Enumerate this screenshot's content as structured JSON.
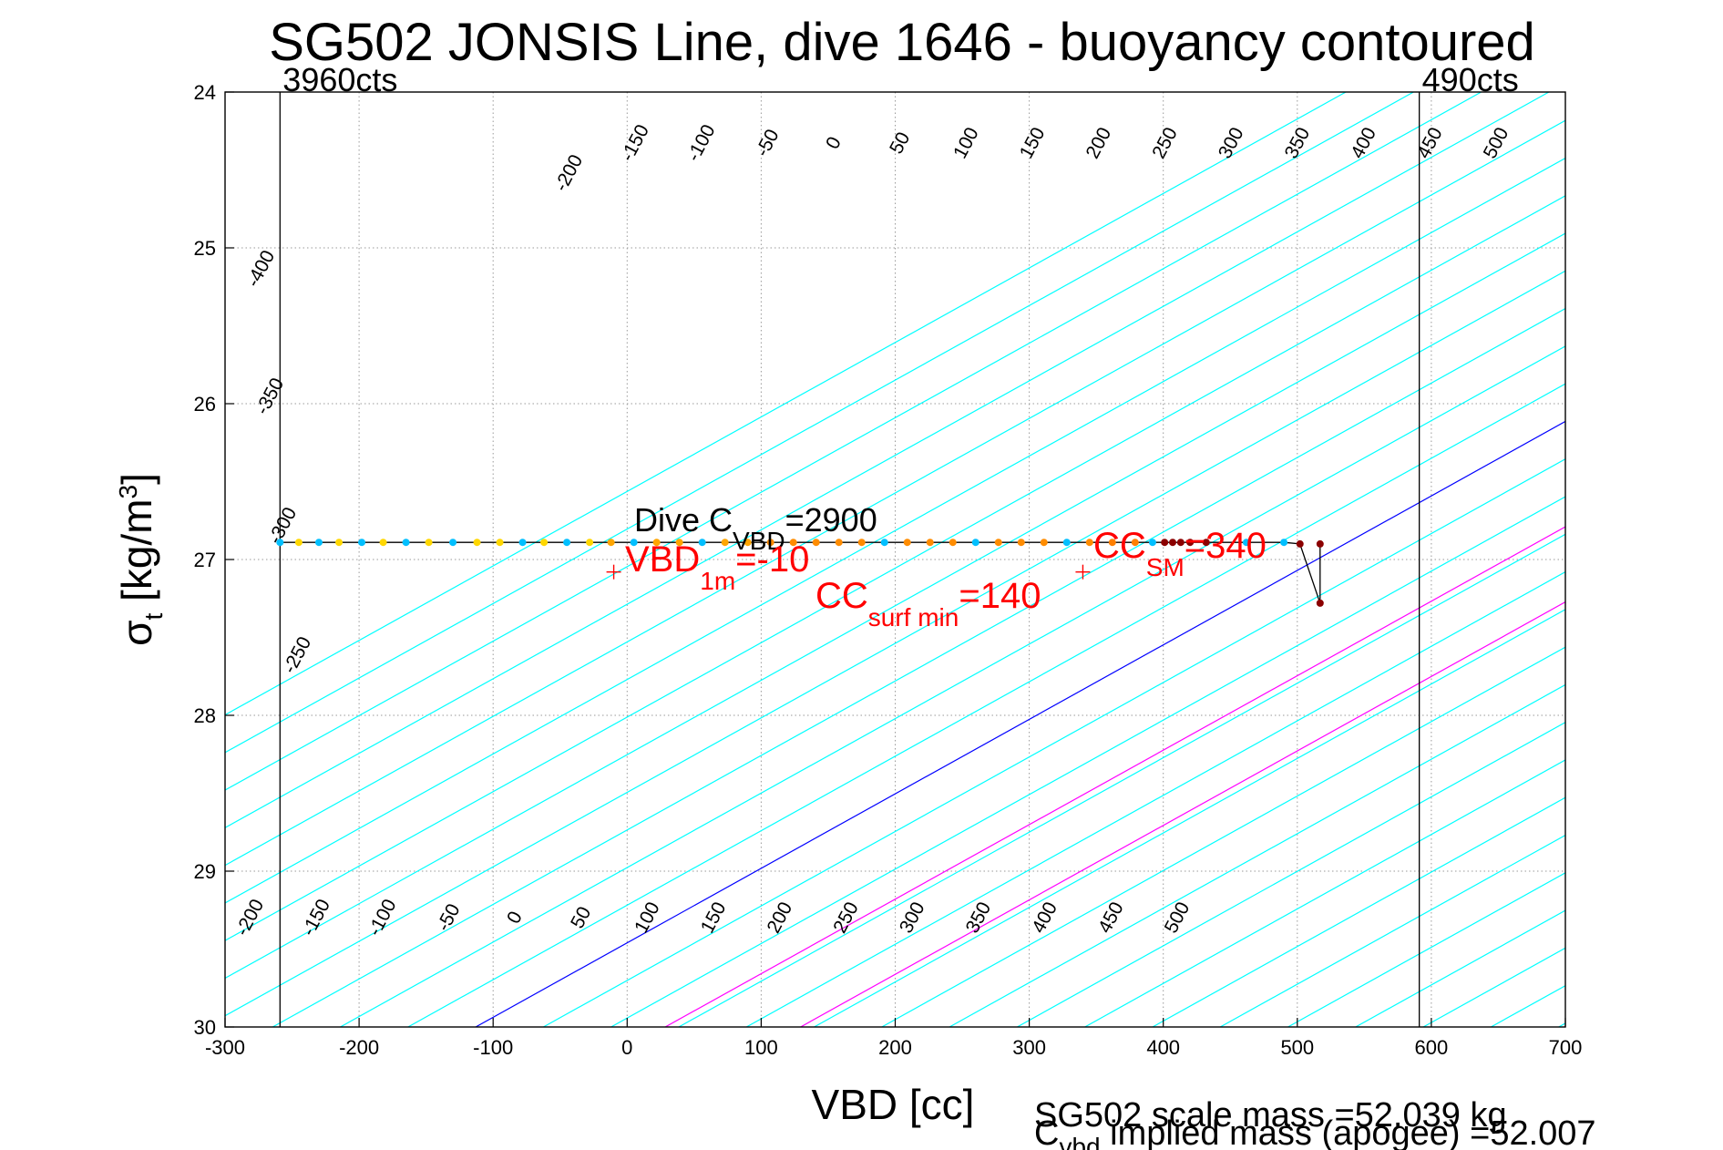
{
  "chart_data": {
    "type": "line",
    "title": "SG502 JONSIS Line, dive 1646 - buoyancy contoured",
    "xlabel": "VBD [cc]",
    "ylabel": {
      "main": "σ",
      "sub": "t",
      "unit_pre": " [kg/m",
      "unit_sup": "3",
      "unit_post": "]"
    },
    "xlim": [
      -300,
      700
    ],
    "ylim": [
      24,
      30
    ],
    "y_reversed": true,
    "x_ticks": [
      -300,
      -200,
      -100,
      0,
      100,
      200,
      300,
      400,
      500,
      600,
      700
    ],
    "y_ticks": [
      24,
      25,
      26,
      27,
      28,
      29,
      30
    ],
    "grid": true,
    "count_markers": [
      {
        "vbd": -259,
        "label": "3960cts"
      },
      {
        "vbd": 591,
        "label": "490cts"
      }
    ],
    "contour_slope_vbd_per_sigma": 209.2,
    "contour_x_at_sigma30_for_zero": -113,
    "contour_levels": [
      -400,
      -350,
      -300,
      -250,
      -200,
      -150,
      -100,
      -50,
      0,
      50,
      100,
      150,
      200,
      250,
      300,
      350,
      400,
      450,
      500
    ],
    "contour_colors": {
      "default": "#00ffff",
      "zero": "#0000ff",
      "highlight": "#ff00ff"
    },
    "highlight_levels": [
      140,
      240
    ],
    "top_contour_labels": [
      "-200",
      "-150",
      "-100",
      "-50",
      "0",
      "50",
      "100",
      "150",
      "200",
      "250",
      "300",
      "350",
      "400",
      "450",
      "500"
    ],
    "bottom_contour_labels": [
      "-200",
      "-150",
      "-100",
      "-50",
      "0",
      "50",
      "100",
      "150",
      "200",
      "250",
      "300",
      "350",
      "400",
      "450",
      "500"
    ],
    "left_contour_labels": [
      "-400",
      "-350",
      "-300",
      "-250"
    ],
    "dive_profile": {
      "vbd": [
        -259,
        -245,
        -230,
        -215,
        -198,
        -182,
        -165,
        -148,
        -130,
        -112,
        -95,
        -78,
        -62,
        -45,
        -28,
        -12,
        5,
        22,
        39,
        56,
        73,
        90,
        107,
        124,
        141,
        158,
        175,
        192,
        209,
        226,
        243,
        260,
        277,
        294,
        311,
        328,
        345,
        362,
        379,
        392,
        401,
        407,
        413,
        420,
        432,
        462,
        490,
        502,
        517,
        517
      ],
      "sigma": [
        26.89,
        26.89,
        26.89,
        26.89,
        26.89,
        26.89,
        26.89,
        26.89,
        26.89,
        26.89,
        26.89,
        26.89,
        26.89,
        26.89,
        26.89,
        26.89,
        26.89,
        26.89,
        26.89,
        26.89,
        26.89,
        26.89,
        26.89,
        26.89,
        26.89,
        26.89,
        26.89,
        26.89,
        26.89,
        26.89,
        26.89,
        26.89,
        26.89,
        26.89,
        26.89,
        26.89,
        26.89,
        26.89,
        26.89,
        26.89,
        26.89,
        26.89,
        26.89,
        26.89,
        26.89,
        26.89,
        26.89,
        26.9,
        27.28,
        26.9
      ],
      "point_colors": [
        "#00bfff",
        "#ffd700",
        "#00bfff",
        "#ffd700",
        "#00bfff",
        "#ffd700",
        "#00bfff",
        "#ffd700",
        "#00bfff",
        "#ffd700",
        "#ffd700",
        "#00bfff",
        "#ffd700",
        "#00bfff",
        "#ffd700",
        "#ffa500",
        "#00bfff",
        "#ffa500",
        "#ffa500",
        "#00bfff",
        "#ffa500",
        "#ffa500",
        "#ff8c00",
        "#ff8c00",
        "#ff8c00",
        "#ff8c00",
        "#ff8c00",
        "#00bfff",
        "#ff8c00",
        "#ff8c00",
        "#ff8c00",
        "#00bfff",
        "#ff8c00",
        "#ff8c00",
        "#ff8c00",
        "#00bfff",
        "#ff8c00",
        "#ff7f00",
        "#ff7f00",
        "#00bfff",
        "#8b0000",
        "#8b0000",
        "#8b0000",
        "#8b0000",
        "#8b0000",
        "#00bfff",
        "#00bfff",
        "#8b0000",
        "#8b0000",
        "#8b0000"
      ]
    },
    "red_markers": [
      {
        "vbd": -10,
        "sigma": 27.08
      },
      {
        "vbd": 340,
        "sigma": 27.08
      }
    ],
    "annotations": {
      "dive_c_vbd": {
        "prefix": "Dive C",
        "sub": "VBD",
        "suffix": "=2900"
      },
      "vbd_1m": {
        "prefix": "VBD",
        "sub": "1m",
        "suffix": "=-10"
      },
      "cc_surf_min": {
        "prefix": "CC",
        "sub": "surf min",
        "suffix": "=140"
      },
      "cc_sm": {
        "prefix": "CC",
        "sub": "SM",
        "suffix": "=340"
      }
    },
    "footer": {
      "line1": "SG502 scale mass =52.039 kg",
      "line2_prefix": "C",
      "line2_sub": "vbd",
      "line2_suffix": " implied mass (apogee) =52.007"
    }
  }
}
